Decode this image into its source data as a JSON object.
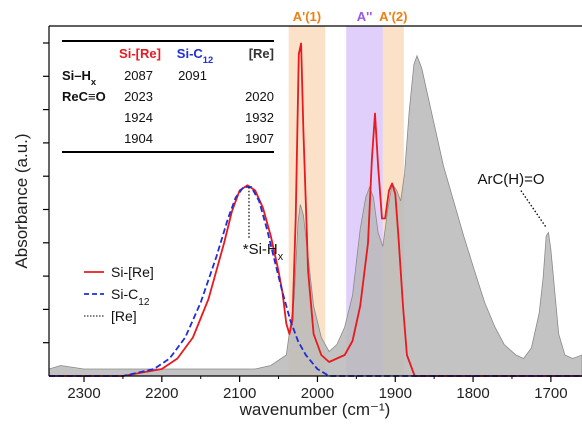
{
  "chart_data": {
    "type": "line",
    "xlabel": "wavenumber (cm⁻¹)",
    "ylabel": "Absorbance (a.u.)",
    "xlim": [
      2345,
      1660
    ],
    "ylim": [
      0,
      1.0
    ],
    "x_reversed": true,
    "x_ticks": [
      2300,
      2200,
      2100,
      2000,
      1900,
      1800,
      1700
    ],
    "x_tick_labels": [
      "2300",
      "2200",
      "2100",
      "2000",
      "1900",
      "1800",
      "1700"
    ],
    "y_tick_count": 10,
    "y_tick_labels_shown": false,
    "grid": false,
    "legend_position": "bottom-left",
    "colors": {
      "si_re": "#e8191f",
      "si_c12": "#1f2fd6",
      "re": "#333333",
      "re_fill": "#b8b8b8",
      "band_orange": "#f6c89a",
      "band_purple": "#c7a8f5",
      "orange_label": "#f07e12",
      "purple_label": "#9a55f0"
    },
    "bands": [
      {
        "label": "A'(1)",
        "x_from": 2037,
        "x_to": 1990,
        "color": "band_orange"
      },
      {
        "label": "A''",
        "x_from": 1963,
        "x_to": 1916,
        "color": "band_purple"
      },
      {
        "label": "A'(2)",
        "x_from": 1916,
        "x_to": 1889,
        "color": "band_orange"
      }
    ],
    "series": [
      {
        "name": "Si-[Re]",
        "style": "solid",
        "color": "si_re",
        "points": [
          [
            2345,
            0.0
          ],
          [
            2250,
            0.0
          ],
          [
            2200,
            0.02
          ],
          [
            2180,
            0.05
          ],
          [
            2160,
            0.11
          ],
          [
            2140,
            0.22
          ],
          [
            2120,
            0.38
          ],
          [
            2110,
            0.47
          ],
          [
            2100,
            0.53
          ],
          [
            2090,
            0.545
          ],
          [
            2080,
            0.53
          ],
          [
            2070,
            0.48
          ],
          [
            2060,
            0.4
          ],
          [
            2050,
            0.3
          ],
          [
            2045,
            0.24
          ],
          [
            2040,
            0.15
          ],
          [
            2036,
            0.12
          ],
          [
            2032,
            0.16
          ],
          [
            2028,
            0.45
          ],
          [
            2024,
            0.92
          ],
          [
            2021,
            0.95
          ],
          [
            2018,
            0.7
          ],
          [
            2012,
            0.3
          ],
          [
            2005,
            0.12
          ],
          [
            1995,
            0.06
          ],
          [
            1985,
            0.04
          ],
          [
            1975,
            0.05
          ],
          [
            1965,
            0.06
          ],
          [
            1955,
            0.1
          ],
          [
            1945,
            0.2
          ],
          [
            1935,
            0.38
          ],
          [
            1930,
            0.62
          ],
          [
            1926,
            0.75
          ],
          [
            1922,
            0.6
          ],
          [
            1917,
            0.45
          ],
          [
            1913,
            0.45
          ],
          [
            1908,
            0.53
          ],
          [
            1904,
            0.55
          ],
          [
            1900,
            0.52
          ],
          [
            1896,
            0.4
          ],
          [
            1890,
            0.2
          ],
          [
            1885,
            0.06
          ],
          [
            1875,
            0.0
          ],
          [
            1660,
            0.0
          ]
        ]
      },
      {
        "name": "Si-C12",
        "name_sub": "12",
        "style": "dashed",
        "color": "si_c12",
        "points": [
          [
            2345,
            0.0
          ],
          [
            2250,
            0.0
          ],
          [
            2210,
            0.02
          ],
          [
            2190,
            0.05
          ],
          [
            2170,
            0.11
          ],
          [
            2150,
            0.21
          ],
          [
            2130,
            0.34
          ],
          [
            2115,
            0.45
          ],
          [
            2105,
            0.51
          ],
          [
            2095,
            0.54
          ],
          [
            2085,
            0.54
          ],
          [
            2075,
            0.5
          ],
          [
            2065,
            0.42
          ],
          [
            2055,
            0.33
          ],
          [
            2045,
            0.24
          ],
          [
            2035,
            0.16
          ],
          [
            2025,
            0.1
          ],
          [
            2015,
            0.06
          ],
          [
            2000,
            0.02
          ],
          [
            1985,
            0.0
          ],
          [
            1660,
            0.0
          ]
        ]
      },
      {
        "name": "[Re]",
        "style": "dotted-fill",
        "color": "re",
        "points": [
          [
            2345,
            0.02
          ],
          [
            2330,
            0.03
          ],
          [
            2300,
            0.02
          ],
          [
            2270,
            0.02
          ],
          [
            2240,
            0.02
          ],
          [
            2200,
            0.02
          ],
          [
            2170,
            0.02
          ],
          [
            2120,
            0.02
          ],
          [
            2080,
            0.02
          ],
          [
            2060,
            0.03
          ],
          [
            2040,
            0.06
          ],
          [
            2030,
            0.22
          ],
          [
            2025,
            0.44
          ],
          [
            2022,
            0.49
          ],
          [
            2018,
            0.46
          ],
          [
            2012,
            0.34
          ],
          [
            2005,
            0.2
          ],
          [
            1995,
            0.11
          ],
          [
            1985,
            0.07
          ],
          [
            1975,
            0.09
          ],
          [
            1965,
            0.14
          ],
          [
            1955,
            0.23
          ],
          [
            1945,
            0.42
          ],
          [
            1938,
            0.51
          ],
          [
            1933,
            0.54
          ],
          [
            1928,
            0.51
          ],
          [
            1922,
            0.41
          ],
          [
            1916,
            0.37
          ],
          [
            1910,
            0.47
          ],
          [
            1904,
            0.55
          ],
          [
            1898,
            0.53
          ],
          [
            1893,
            0.5
          ],
          [
            1888,
            0.58
          ],
          [
            1882,
            0.76
          ],
          [
            1876,
            0.89
          ],
          [
            1872,
            0.915
          ],
          [
            1866,
            0.88
          ],
          [
            1858,
            0.8
          ],
          [
            1848,
            0.7
          ],
          [
            1838,
            0.6
          ],
          [
            1825,
            0.5
          ],
          [
            1812,
            0.4
          ],
          [
            1798,
            0.3
          ],
          [
            1785,
            0.21
          ],
          [
            1772,
            0.14
          ],
          [
            1760,
            0.09
          ],
          [
            1745,
            0.06
          ],
          [
            1735,
            0.05
          ],
          [
            1725,
            0.08
          ],
          [
            1715,
            0.18
          ],
          [
            1710,
            0.28
          ],
          [
            1706,
            0.4
          ],
          [
            1703,
            0.41
          ],
          [
            1700,
            0.36
          ],
          [
            1695,
            0.24
          ],
          [
            1690,
            0.12
          ],
          [
            1682,
            0.06
          ],
          [
            1672,
            0.05
          ],
          [
            1660,
            0.06
          ]
        ]
      }
    ],
    "annotations": {
      "si_hx_marker": {
        "text_prefix": "*Si-H",
        "sub": "x",
        "x": 2088,
        "y": 0.545
      },
      "arc_label": {
        "text": "ArC(H)=O",
        "x": 1703,
        "y": 0.41
      }
    },
    "legend": [
      {
        "label": "Si-[Re]",
        "style": "solid",
        "color": "si_re"
      },
      {
        "label_prefix": "Si-C",
        "sub": "12",
        "style": "dashed",
        "color": "si_c12"
      },
      {
        "label": "[Re]",
        "style": "dotted",
        "color": "re"
      }
    ],
    "table": {
      "headers": [
        {
          "text": "Si-[Re]",
          "color": "si_re"
        },
        {
          "text_prefix": "Si-C",
          "sub": "12",
          "color": "si_c12"
        },
        {
          "text": "[Re]",
          "color": "re"
        }
      ],
      "rows": [
        {
          "label_prefix": "Si–H",
          "label_sub": "x",
          "values": [
            "2087",
            "2091",
            ""
          ]
        },
        {
          "label": "ReC≡O",
          "values": [
            "2023",
            "",
            "2020"
          ]
        },
        {
          "label": "",
          "values": [
            "1924",
            "",
            "1932"
          ]
        },
        {
          "label": "",
          "values": [
            "1904",
            "",
            "1907"
          ]
        }
      ]
    }
  }
}
